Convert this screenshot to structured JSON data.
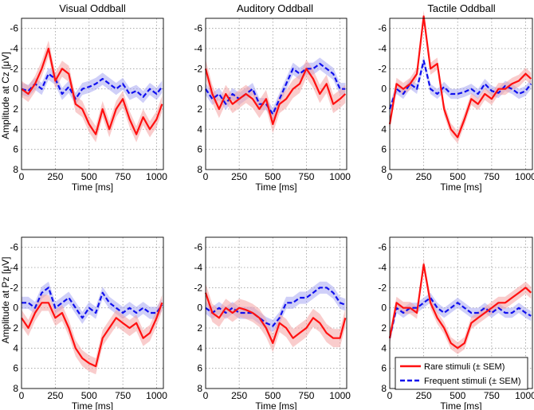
{
  "chart_data": {
    "type": "line",
    "layout": "2x3 grid",
    "column_titles": [
      "Visual Oddball",
      "Auditory Oddball",
      "Tactile Oddball"
    ],
    "row_ylabels": [
      "Amplitude at Cz [μV]",
      "Amplitude at Pz [μV]"
    ],
    "xlabel": "Time [ms]",
    "xlim": [
      0,
      1050
    ],
    "ylim": [
      -7,
      8
    ],
    "y_inverted": true,
    "xticks": [
      0,
      250,
      500,
      750,
      1000
    ],
    "yticks": [
      -6,
      -4,
      -2,
      0,
      2,
      4,
      6,
      8
    ],
    "ytick_labels": [
      "-6",
      "-4",
      "-2",
      "0",
      "2",
      "4",
      "6",
      "8"
    ],
    "grid": true,
    "legend": {
      "placement": "bottom-right panel, lower-right",
      "entries": [
        "Rare stimuli (± SEM)",
        "Frequent stimuli (± SEM)"
      ]
    },
    "series_style": {
      "rare": {
        "name": "Rare stimuli (± SEM)",
        "color": "#ff1010",
        "style": "solid"
      },
      "frequent": {
        "name": "Frequent stimuli (± SEM)",
        "color": "#1010ee",
        "style": "dashed"
      }
    },
    "x": [
      0,
      50,
      100,
      150,
      200,
      250,
      300,
      350,
      400,
      450,
      500,
      550,
      600,
      650,
      700,
      750,
      800,
      850,
      900,
      950,
      1000,
      1040
    ],
    "panels": [
      {
        "id": "cz-visual",
        "row": 0,
        "col": 0,
        "rare": [
          0,
          0.5,
          -0.5,
          -2.0,
          -4.0,
          -0.8,
          -2.0,
          -1.5,
          1.5,
          2.0,
          3.5,
          4.5,
          2.0,
          4.0,
          2.0,
          1.0,
          3.0,
          4.5,
          2.8,
          4.0,
          3.0,
          1.5
        ],
        "rare_sem": 0.8,
        "frequent": [
          0,
          0.2,
          -0.5,
          0,
          -1.5,
          -1.0,
          0.5,
          -0.2,
          1.0,
          0,
          -0.2,
          -0.5,
          -1.0,
          -0.5,
          0,
          -0.5,
          0.5,
          0.2,
          0.8,
          0,
          0.5,
          -0.2
        ],
        "frequent_sem": 0.6
      },
      {
        "id": "cz-auditory",
        "row": 0,
        "col": 1,
        "rare": [
          -2.0,
          0.5,
          2.0,
          0.5,
          1.5,
          1.0,
          0.5,
          1.0,
          2.0,
          1.0,
          3.5,
          1.5,
          1.0,
          0,
          -0.5,
          -2.0,
          -1.0,
          0.5,
          -0.5,
          1.5,
          1.0,
          0.5
        ],
        "rare_sem": 0.9,
        "frequent": [
          0,
          1.0,
          0.5,
          1.5,
          0.5,
          1.0,
          0.5,
          0,
          1.5,
          1.5,
          2.5,
          1.0,
          -0.5,
          -2.0,
          -1.5,
          -2.0,
          -2.0,
          -2.5,
          -2.0,
          -1.5,
          0,
          0
        ],
        "frequent_sem": 0.6
      },
      {
        "id": "cz-tactile",
        "row": 0,
        "col": 2,
        "rare": [
          3.5,
          -0.5,
          0,
          -0.5,
          -1.5,
          -7.2,
          -2.0,
          -2.5,
          2.0,
          4.0,
          4.8,
          3.0,
          1.0,
          1.5,
          0.5,
          1.0,
          0,
          0,
          -0.5,
          -0.8,
          -1.5,
          -1.0
        ],
        "rare_sem": 0.6,
        "frequent": [
          2.0,
          0,
          0.5,
          -0.5,
          0,
          -2.8,
          0,
          0.5,
          -0.2,
          0.5,
          0.5,
          0.3,
          0,
          0.5,
          -0.5,
          0.2,
          0.4,
          -0.3,
          0,
          0.5,
          0.2,
          -0.5
        ],
        "frequent_sem": 0.5
      },
      {
        "id": "pz-visual",
        "row": 1,
        "col": 0,
        "rare": [
          1.0,
          2.0,
          0.5,
          -0.5,
          -0.5,
          1.0,
          0.5,
          2.0,
          4.0,
          5.0,
          5.5,
          5.8,
          3.0,
          2.0,
          1.0,
          1.5,
          2.0,
          1.5,
          3.0,
          2.5,
          1.0,
          -0.5
        ],
        "rare_sem": 0.8,
        "frequent": [
          -0.5,
          -0.5,
          0,
          -1.5,
          -2.0,
          0,
          -0.5,
          -1.0,
          0,
          1.0,
          0,
          0.5,
          -1.5,
          -0.5,
          0,
          0.5,
          0,
          0.5,
          0,
          0.5,
          0.5,
          -0.3
        ],
        "frequent_sem": 0.6
      },
      {
        "id": "pz-auditory",
        "row": 1,
        "col": 1,
        "rare": [
          -1.5,
          0.5,
          1.0,
          0,
          0.5,
          0,
          0.2,
          0.5,
          1.0,
          2.0,
          3.5,
          1.5,
          2.0,
          3.0,
          2.5,
          2.0,
          1.0,
          1.5,
          2.5,
          3.0,
          3.0,
          1.0
        ],
        "rare_sem": 0.9,
        "frequent": [
          0,
          0.5,
          0,
          0.5,
          0,
          0.5,
          0.5,
          0.5,
          1.0,
          1.5,
          1.8,
          1.0,
          -0.5,
          -0.5,
          -1.0,
          -1.0,
          -1.5,
          -2.0,
          -2.0,
          -1.5,
          -0.5,
          -0.3
        ],
        "frequent_sem": 0.6
      },
      {
        "id": "pz-tactile",
        "row": 1,
        "col": 2,
        "rare": [
          3.0,
          -0.5,
          0,
          0,
          0.5,
          -4.3,
          -0.5,
          1.0,
          2.0,
          3.5,
          4.0,
          3.5,
          1.5,
          1.0,
          0.5,
          0,
          -0.5,
          -0.5,
          -1.0,
          -1.5,
          -2.0,
          -1.5
        ],
        "rare_sem": 0.6,
        "frequent": [
          3.0,
          0,
          0.5,
          0,
          0,
          -0.5,
          -1.0,
          0,
          0.5,
          0,
          -0.5,
          0,
          0.5,
          0.5,
          0,
          0.5,
          0,
          0.5,
          0.5,
          0,
          0.5,
          0.8
        ],
        "frequent_sem": 0.5
      }
    ]
  }
}
